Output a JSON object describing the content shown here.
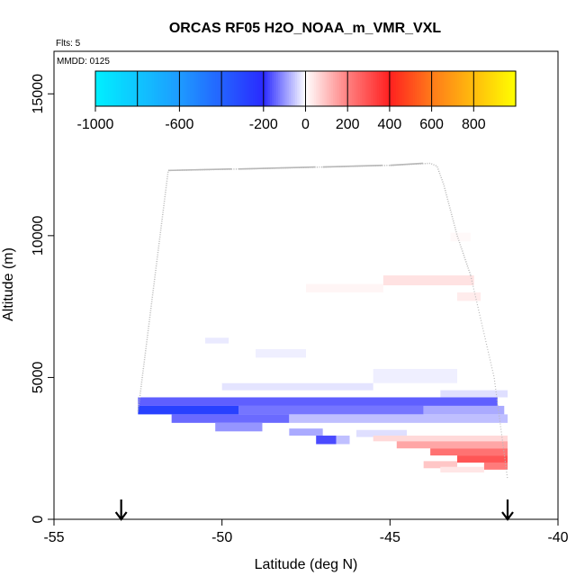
{
  "chart_data": {
    "type": "heatmap",
    "title": "ORCAS RF05 H2O_NOAA_m_VMR_VXL",
    "flights_note": "Flts: 5",
    "date_note": "MMDD: 0125",
    "xlabel": "Latitude (deg N)",
    "ylabel": "Altitude (m)",
    "xlim": [
      -55,
      -40
    ],
    "ylim": [
      0,
      16500
    ],
    "xticks": [
      -55,
      -50,
      -45,
      -40
    ],
    "yticks": [
      0,
      5000,
      10000,
      15000
    ],
    "colorbar": {
      "range": [
        -1000,
        1000
      ],
      "ticks": [
        -1000,
        -600,
        -200,
        0,
        200,
        400,
        600,
        800
      ],
      "tick_labels": [
        "-1000",
        "-600",
        "-200",
        "0",
        "200",
        "400",
        "600",
        "800"
      ],
      "stops": [
        {
          "v": -1000,
          "c": "#00f0ff"
        },
        {
          "v": -600,
          "c": "#1e9bff"
        },
        {
          "v": -200,
          "c": "#2a2aff"
        },
        {
          "v": 0,
          "c": "#ffffff"
        },
        {
          "v": 200,
          "c": "#ff8080"
        },
        {
          "v": 400,
          "c": "#ff2020"
        },
        {
          "v": 600,
          "c": "#ff7a1a"
        },
        {
          "v": 1000,
          "c": "#ffff00"
        }
      ]
    },
    "markers": [
      {
        "name": "start-arrow",
        "lat": -53.0
      },
      {
        "name": "end-arrow",
        "lat": -41.5
      }
    ],
    "flight_track": {
      "color": "#b8b8b8",
      "points": [
        [
          -52.5,
          3800
        ],
        [
          -51.6,
          12300
        ],
        [
          -49.5,
          12350
        ],
        [
          -47.0,
          12420
        ],
        [
          -45.0,
          12480
        ],
        [
          -43.8,
          12550
        ],
        [
          -43.6,
          12450
        ],
        [
          -43.4,
          11800
        ],
        [
          -43.0,
          10000
        ],
        [
          -42.6,
          8600
        ]
      ],
      "tail": [
        [
          -42.6,
          8600
        ],
        [
          -41.9,
          5000
        ],
        [
          -41.5,
          1400
        ]
      ]
    },
    "cells": [
      {
        "lat0": -52.5,
        "lat1": -41.8,
        "alt0": 4000,
        "alt1": 4300,
        "v": -150
      },
      {
        "lat0": -52.5,
        "lat1": -49.5,
        "alt0": 3700,
        "alt1": 4000,
        "v": -280
      },
      {
        "lat0": -49.5,
        "lat1": -44.0,
        "alt0": 3700,
        "alt1": 4000,
        "v": -130
      },
      {
        "lat0": -44.0,
        "lat1": -41.6,
        "alt0": 3700,
        "alt1": 4000,
        "v": -80
      },
      {
        "lat0": -51.5,
        "lat1": -48.0,
        "alt0": 3400,
        "alt1": 3700,
        "v": -140
      },
      {
        "lat0": -48.0,
        "lat1": -41.5,
        "alt0": 3400,
        "alt1": 3700,
        "v": -60
      },
      {
        "lat0": -50.2,
        "lat1": -48.8,
        "alt0": 3100,
        "alt1": 3400,
        "v": -100
      },
      {
        "lat0": -48.0,
        "lat1": -47.0,
        "alt0": 2950,
        "alt1": 3200,
        "v": -80
      },
      {
        "lat0": -46.0,
        "lat1": -44.5,
        "alt0": 2900,
        "alt1": 3150,
        "v": -30
      },
      {
        "lat0": -47.2,
        "lat1": -46.6,
        "alt0": 2650,
        "alt1": 2950,
        "v": -170
      },
      {
        "lat0": -46.6,
        "lat1": -46.2,
        "alt0": 2650,
        "alt1": 2950,
        "v": -60
      },
      {
        "lat0": -43.5,
        "lat1": -41.5,
        "alt0": 4300,
        "alt1": 4550,
        "v": -30
      },
      {
        "lat0": -50.0,
        "lat1": -45.5,
        "alt0": 4550,
        "alt1": 4800,
        "v": -25
      },
      {
        "lat0": -45.5,
        "lat1": -43.0,
        "alt0": 4800,
        "alt1": 5300,
        "v": -15
      },
      {
        "lat0": -49.0,
        "lat1": -47.5,
        "alt0": 5700,
        "alt1": 6000,
        "v": -15
      },
      {
        "lat0": -50.5,
        "lat1": -49.8,
        "alt0": 6200,
        "alt1": 6400,
        "v": -20
      },
      {
        "lat0": -45.5,
        "lat1": -41.5,
        "alt0": 2750,
        "alt1": 2950,
        "v": 60
      },
      {
        "lat0": -44.8,
        "lat1": -41.5,
        "alt0": 2500,
        "alt1": 2750,
        "v": 140
      },
      {
        "lat0": -43.8,
        "lat1": -41.5,
        "alt0": 2250,
        "alt1": 2500,
        "v": 230
      },
      {
        "lat0": -43.0,
        "lat1": -41.5,
        "alt0": 2000,
        "alt1": 2250,
        "v": 290
      },
      {
        "lat0": -42.2,
        "lat1": -41.5,
        "alt0": 1750,
        "alt1": 2000,
        "v": 210
      },
      {
        "lat0": -44.0,
        "lat1": -43.0,
        "alt0": 1800,
        "alt1": 2050,
        "v": 90
      },
      {
        "lat0": -43.5,
        "lat1": -42.2,
        "alt0": 1650,
        "alt1": 1850,
        "v": 40
      },
      {
        "lat0": -45.2,
        "lat1": -42.5,
        "alt0": 8250,
        "alt1": 8600,
        "v": 45
      },
      {
        "lat0": -47.5,
        "lat1": -45.2,
        "alt0": 8000,
        "alt1": 8300,
        "v": 15
      },
      {
        "lat0": -43.0,
        "lat1": -42.3,
        "alt0": 7700,
        "alt1": 8000,
        "v": 30
      },
      {
        "lat0": -43.2,
        "lat1": -42.6,
        "alt0": 9800,
        "alt1": 10100,
        "v": 10
      }
    ]
  }
}
